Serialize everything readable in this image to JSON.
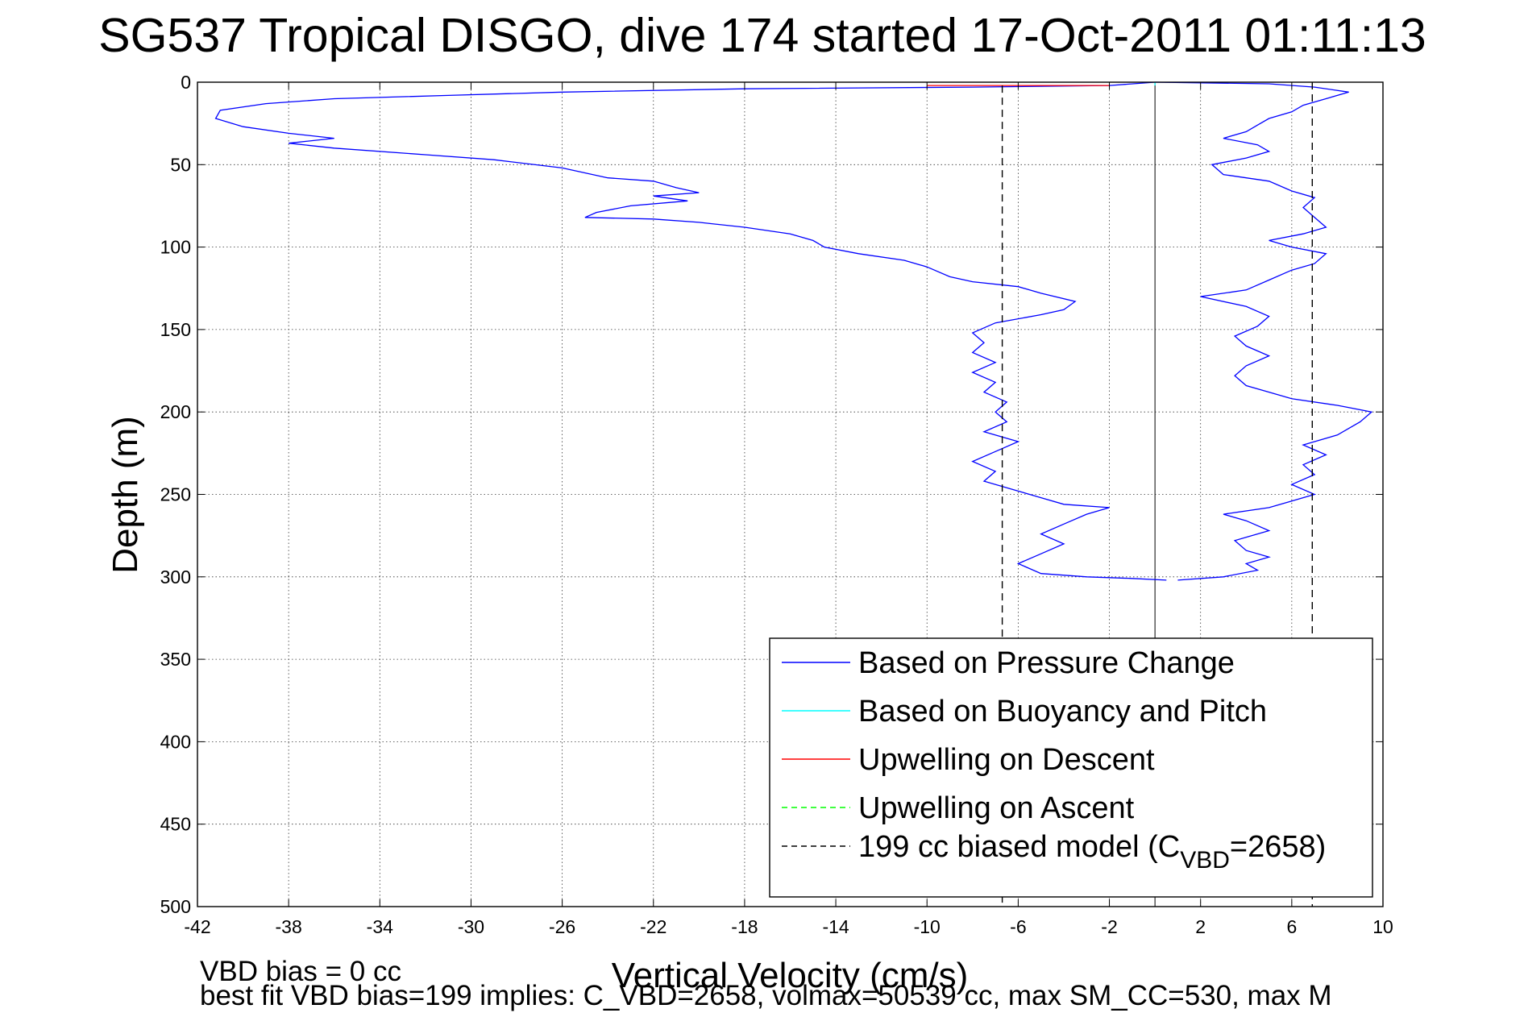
{
  "chart_data": {
    "type": "line",
    "title": "SG537 Tropical DISGO, dive 174 started 17-Oct-2011 01:11:13",
    "xlabel": "Vertical Velocity (cm/s)",
    "ylabel": "Depth (m)",
    "xlim": [
      -42,
      10
    ],
    "ylim": [
      0,
      500
    ],
    "y_reversed": true,
    "grid": true,
    "legend_position": "bottom-right",
    "xticks": [
      "-42",
      "-38",
      "-34",
      "-30",
      "-26",
      "-22",
      "-18",
      "-14",
      "-10",
      "-6",
      "-2",
      "2",
      "6",
      "10"
    ],
    "yticks": [
      "0",
      "50",
      "100",
      "150",
      "200",
      "250",
      "300",
      "350",
      "400",
      "450",
      "500"
    ],
    "legend": [
      {
        "label": "Based on Pressure Change",
        "color": "#0000ff",
        "style": "solid"
      },
      {
        "label": "Based on Buoyancy and Pitch",
        "color": "#00ffff",
        "style": "solid"
      },
      {
        "label": "Upwelling on Descent",
        "color": "#ff0000",
        "style": "solid"
      },
      {
        "label": "Upwelling on Ascent",
        "color": "#00ff00",
        "style": "dashed"
      },
      {
        "label_main": "199 cc biased model (C",
        "label_sub": "VBD",
        "label_end": "=2658)",
        "color": "#000000",
        "style": "dashed"
      }
    ],
    "series": [
      {
        "name": "Based on Pressure Change",
        "color": "#0000ff",
        "segments": [
          {
            "part": "descent",
            "points": [
              [
                0,
                0
              ],
              [
                -2,
                2
              ],
              [
                -8,
                3
              ],
              [
                -18,
                4
              ],
              [
                -26,
                6
              ],
              [
                -31,
                8
              ],
              [
                -36,
                10
              ],
              [
                -39,
                13
              ],
              [
                -41,
                17
              ],
              [
                -41.2,
                22
              ],
              [
                -40,
                27
              ],
              [
                -38,
                31
              ],
              [
                -36,
                34
              ],
              [
                -38,
                37
              ],
              [
                -36,
                40
              ],
              [
                -32,
                44
              ],
              [
                -29,
                47
              ],
              [
                -26,
                52
              ],
              [
                -24,
                58
              ],
              [
                -22,
                60
              ],
              [
                -21,
                64
              ],
              [
                -20,
                67
              ],
              [
                -22,
                69
              ],
              [
                -20.5,
                72
              ],
              [
                -23,
                75
              ],
              [
                -24.5,
                79
              ],
              [
                -25,
                82
              ],
              [
                -22,
                83
              ],
              [
                -20,
                85
              ],
              [
                -18,
                88
              ],
              [
                -16,
                92
              ],
              [
                -15,
                96
              ],
              [
                -14.5,
                100
              ],
              [
                -13,
                104
              ],
              [
                -11,
                108
              ],
              [
                -10,
                112
              ],
              [
                -9,
                118
              ],
              [
                -8,
                121
              ],
              [
                -6,
                124
              ],
              [
                -5,
                128
              ],
              [
                -3.5,
                133
              ],
              [
                -4,
                138
              ],
              [
                -5,
                141
              ],
              [
                -7,
                146
              ],
              [
                -8,
                152
              ],
              [
                -7.5,
                158
              ],
              [
                -8,
                164
              ],
              [
                -7,
                170
              ],
              [
                -8,
                176
              ],
              [
                -7,
                182
              ],
              [
                -7.5,
                188
              ],
              [
                -6.5,
                194
              ],
              [
                -7,
                200
              ],
              [
                -6.5,
                206
              ],
              [
                -7.5,
                212
              ],
              [
                -6,
                218
              ],
              [
                -7,
                224
              ],
              [
                -8,
                230
              ],
              [
                -7,
                236
              ],
              [
                -7.5,
                242
              ],
              [
                -6,
                248
              ],
              [
                -5,
                252
              ],
              [
                -4,
                256
              ],
              [
                -2,
                258
              ],
              [
                -3,
                262
              ],
              [
                -4,
                268
              ],
              [
                -5,
                274
              ],
              [
                -4,
                280
              ],
              [
                -5,
                286
              ],
              [
                -6,
                292
              ],
              [
                -5,
                298
              ],
              [
                -3,
                300
              ],
              [
                -1,
                301
              ],
              [
                0.5,
                302
              ]
            ]
          },
          {
            "part": "ascent",
            "points": [
              [
                1,
                302
              ],
              [
                3,
                300
              ],
              [
                4.5,
                296
              ],
              [
                4,
                292
              ],
              [
                5,
                288
              ],
              [
                4,
                284
              ],
              [
                3.5,
                278
              ],
              [
                5,
                272
              ],
              [
                4,
                266
              ],
              [
                3,
                262
              ],
              [
                5,
                258
              ],
              [
                6,
                254
              ],
              [
                7,
                250
              ],
              [
                6,
                244
              ],
              [
                7,
                238
              ],
              [
                6.5,
                232
              ],
              [
                7.5,
                226
              ],
              [
                6.5,
                220
              ],
              [
                8,
                214
              ],
              [
                9,
                206
              ],
              [
                9.5,
                200
              ],
              [
                8,
                196
              ],
              [
                6,
                192
              ],
              [
                5,
                188
              ],
              [
                4,
                184
              ],
              [
                3.5,
                178
              ],
              [
                4,
                172
              ],
              [
                5,
                166
              ],
              [
                4,
                160
              ],
              [
                3.5,
                154
              ],
              [
                4.5,
                148
              ],
              [
                5,
                142
              ],
              [
                4,
                136
              ],
              [
                2,
                130
              ],
              [
                4,
                126
              ],
              [
                5,
                120
              ],
              [
                6,
                114
              ],
              [
                7,
                110
              ],
              [
                7.5,
                104
              ],
              [
                6,
                100
              ],
              [
                5,
                96
              ],
              [
                6.5,
                92
              ],
              [
                7.5,
                88
              ],
              [
                7,
                82
              ],
              [
                6.5,
                76
              ],
              [
                7,
                70
              ],
              [
                6,
                66
              ],
              [
                5,
                60
              ],
              [
                3,
                56
              ],
              [
                2.5,
                50
              ],
              [
                4,
                46
              ],
              [
                5,
                42
              ],
              [
                4.5,
                38
              ],
              [
                3,
                34
              ],
              [
                4,
                30
              ],
              [
                4.5,
                26
              ],
              [
                5,
                22
              ],
              [
                6,
                18
              ],
              [
                6.5,
                14
              ],
              [
                7.5,
                10
              ],
              [
                8.5,
                6
              ],
              [
                7,
                3
              ],
              [
                5,
                1
              ],
              [
                0,
                0
              ]
            ]
          }
        ]
      },
      {
        "name": "Based on Buoyancy and Pitch",
        "color": "#00ffff",
        "points": [
          [
            0,
            0
          ],
          [
            0,
            2
          ]
        ]
      },
      {
        "name": "Upwelling on Descent",
        "color": "#ff0000",
        "points": [
          [
            -10,
            2
          ],
          [
            -2,
            2
          ]
        ]
      },
      {
        "name": "199 cc biased model (C_VBD=2658)",
        "color": "#000000",
        "style": "dashed",
        "segments": [
          {
            "part": "descent",
            "points": [
              [
                -6.7,
                2
              ],
              [
                -6.7,
                500
              ]
            ]
          },
          {
            "part": "ascent",
            "points": [
              [
                6.9,
                0
              ],
              [
                6.9,
                500
              ]
            ]
          }
        ]
      }
    ],
    "annotations": [
      "VBD bias = 0 cc",
      "best fit VBD bias=199 implies: C_VBD=2658, volmax=50539 cc, max SM_CC=530, max M"
    ]
  }
}
